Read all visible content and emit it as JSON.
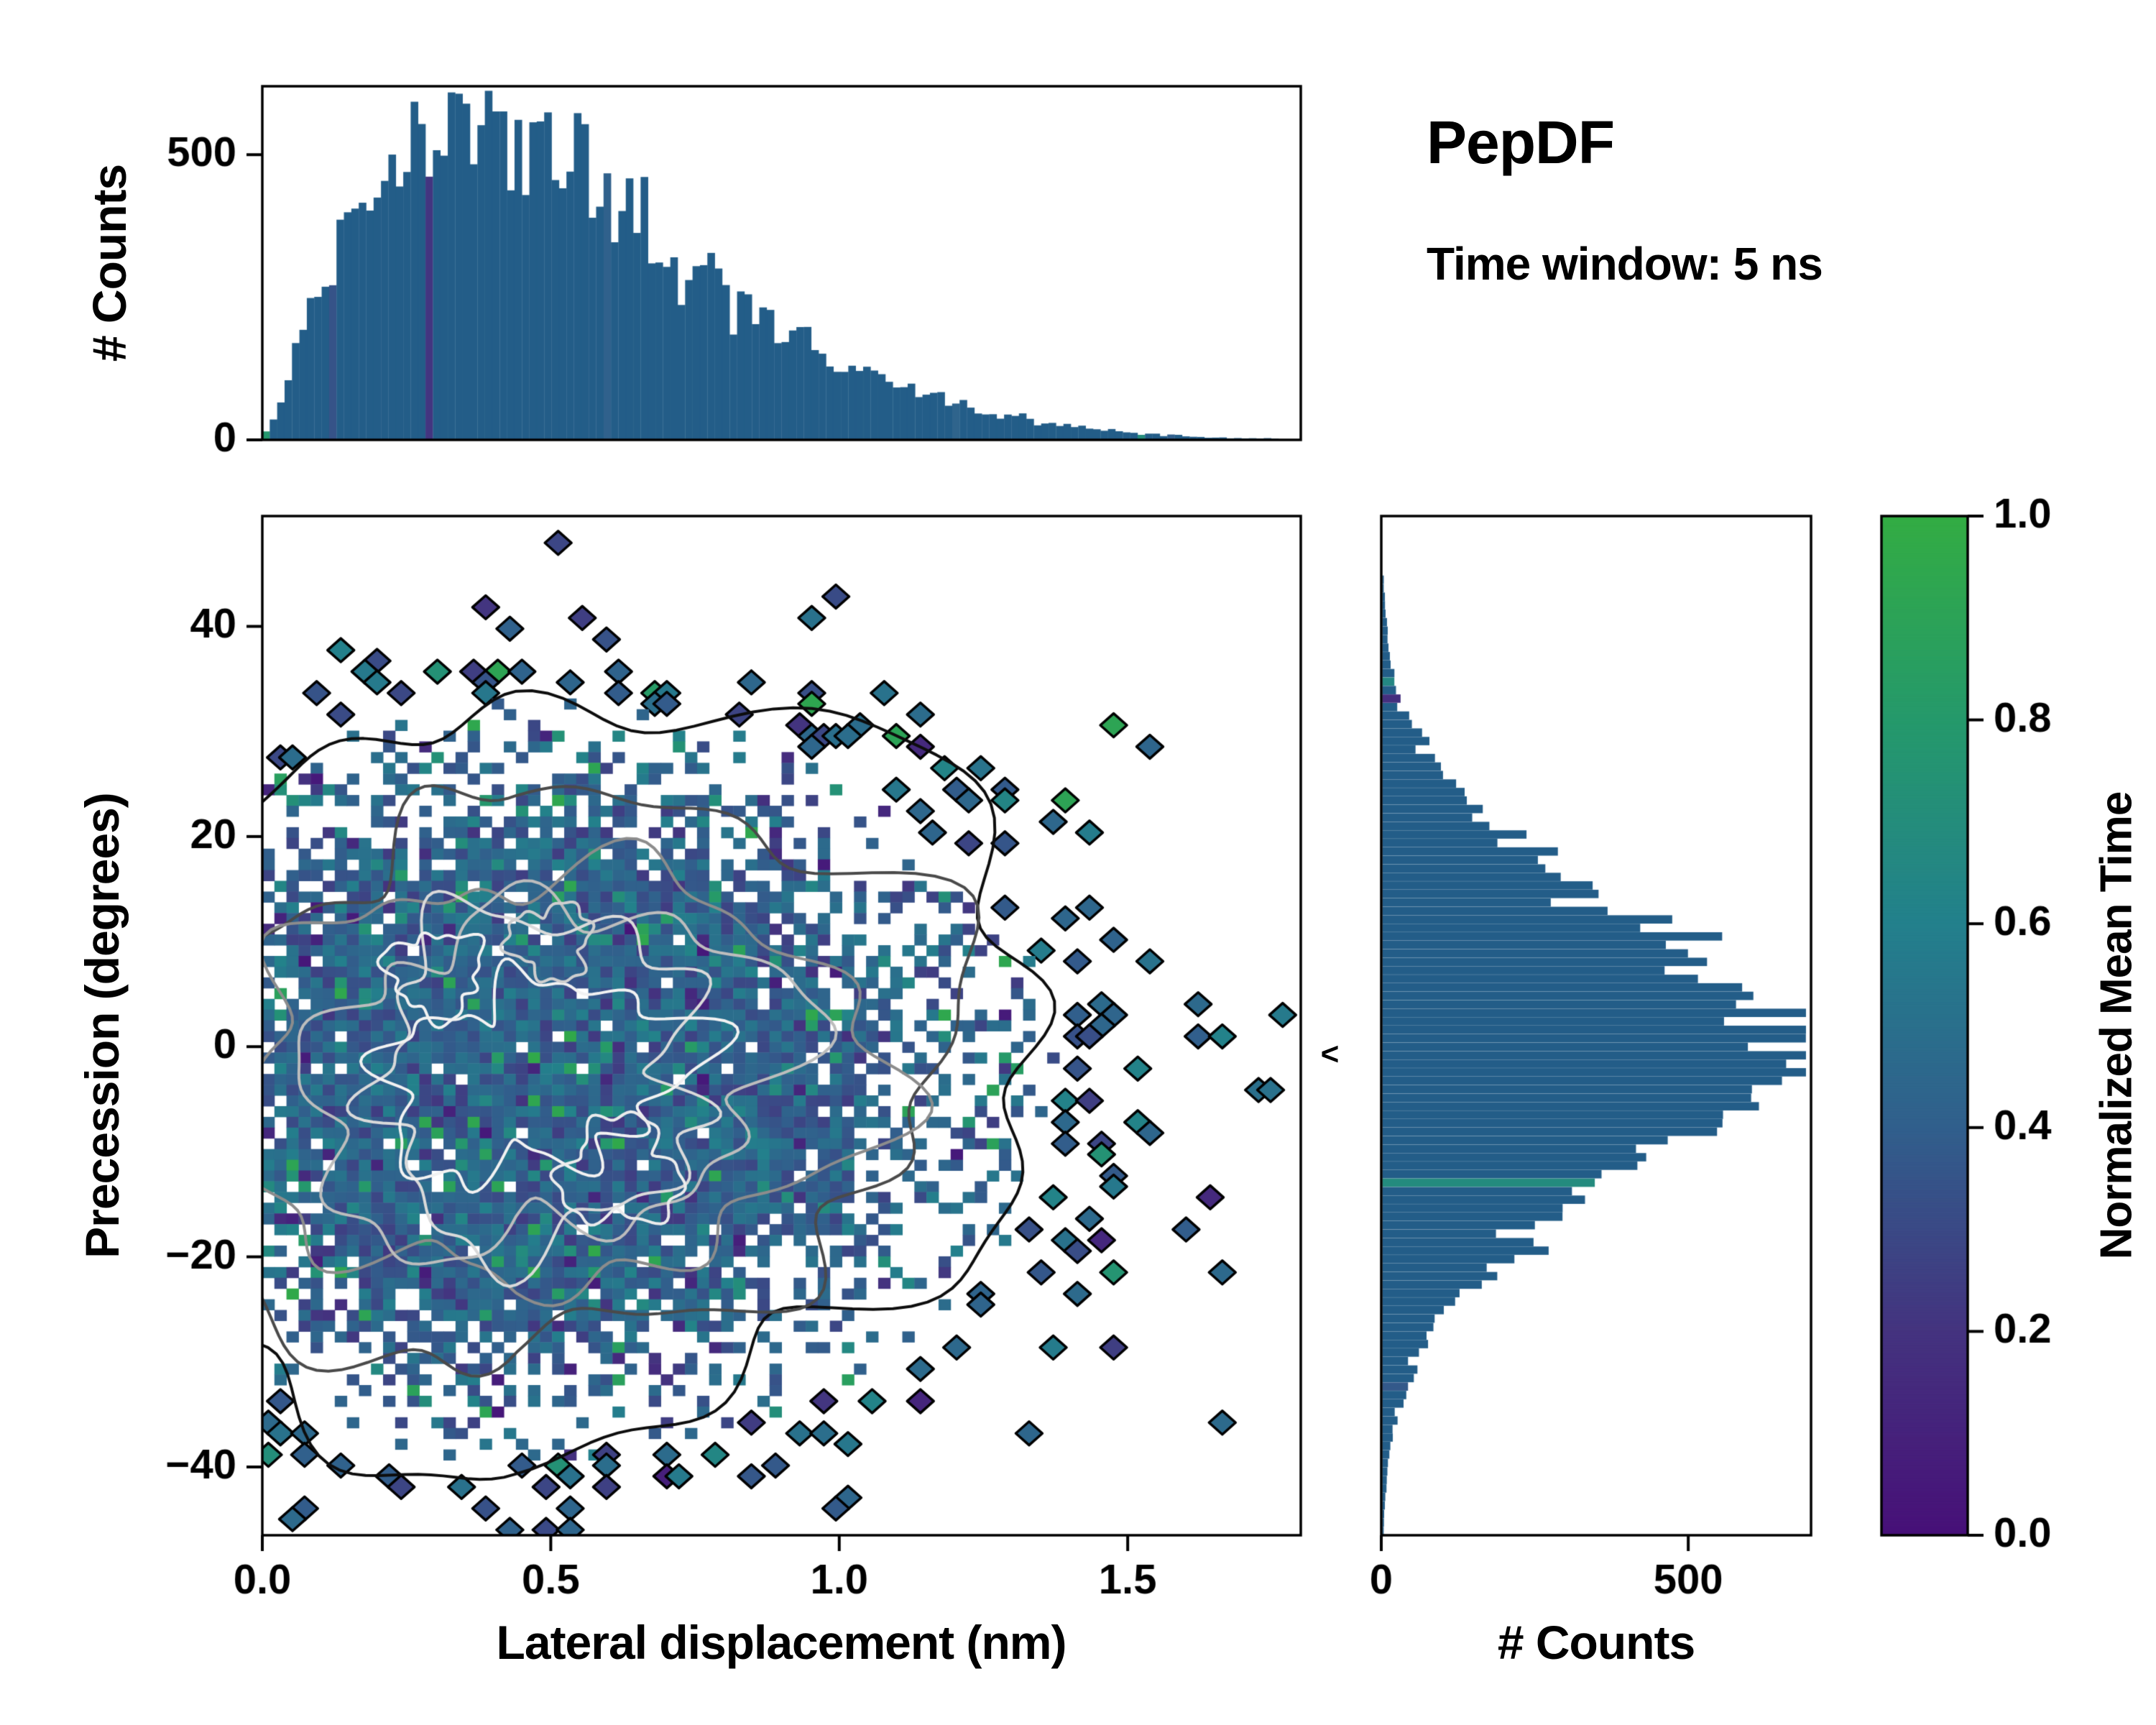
{
  "figure": {
    "title": "PepDF",
    "subtitle": "Time window: 5 ns"
  },
  "annotations": {
    "marker": "<"
  },
  "colors": {
    "background": "#ffffff",
    "bar": "#235d88",
    "spine": "#000000",
    "text": "#000000"
  },
  "colormap": {
    "name": "viridis-style",
    "stops": [
      [
        0.0,
        "#471078"
      ],
      [
        0.2,
        "#44337f"
      ],
      [
        0.4,
        "#315f8c"
      ],
      [
        0.6,
        "#23808c"
      ],
      [
        0.8,
        "#25996b"
      ],
      [
        1.0,
        "#33ac43"
      ]
    ]
  },
  "colorbar": {
    "label": "Normalized Mean Time",
    "tick_values": [
      0.0,
      0.2,
      0.4,
      0.6,
      0.8,
      1.0
    ],
    "tick_labels": [
      "0.0",
      "0.2",
      "0.4",
      "0.6",
      "0.8",
      "1.0"
    ]
  },
  "chart_data": [
    {
      "id": "top-histogram",
      "type": "bar",
      "role": "marginal-x",
      "ylabel": "# Counts",
      "xlim": [
        0,
        1.8
      ],
      "ylim": [
        0,
        620
      ],
      "bins": 140,
      "yticks": {
        "values": [
          0,
          500
        ],
        "labels": [
          "0",
          "500"
        ]
      },
      "envelope": [
        [
          0.0,
          2
        ],
        [
          0.03,
          60
        ],
        [
          0.06,
          150
        ],
        [
          0.1,
          260
        ],
        [
          0.14,
          350
        ],
        [
          0.18,
          415
        ],
        [
          0.22,
          460
        ],
        [
          0.26,
          500
        ],
        [
          0.3,
          525
        ],
        [
          0.34,
          545
        ],
        [
          0.38,
          552
        ],
        [
          0.42,
          548
        ],
        [
          0.46,
          530
        ],
        [
          0.5,
          505
        ],
        [
          0.55,
          468
        ],
        [
          0.6,
          425
        ],
        [
          0.65,
          382
        ],
        [
          0.7,
          338
        ],
        [
          0.75,
          298
        ],
        [
          0.8,
          258
        ],
        [
          0.85,
          222
        ],
        [
          0.9,
          190
        ],
        [
          0.95,
          162
        ],
        [
          1.0,
          138
        ],
        [
          1.05,
          115
        ],
        [
          1.1,
          96
        ],
        [
          1.15,
          80
        ],
        [
          1.2,
          64
        ],
        [
          1.25,
          51
        ],
        [
          1.3,
          40
        ],
        [
          1.35,
          31
        ],
        [
          1.4,
          24
        ],
        [
          1.45,
          18
        ],
        [
          1.5,
          13
        ],
        [
          1.55,
          9
        ],
        [
          1.6,
          6
        ],
        [
          1.65,
          4
        ],
        [
          1.7,
          3
        ],
        [
          1.75,
          2
        ],
        [
          1.8,
          1
        ]
      ]
    },
    {
      "id": "joint-heatmap",
      "type": "heatmap",
      "xlabel": "Lateral displacement (nm)",
      "ylabel": "Precession (degrees)",
      "value_label": "Normalized Mean Time",
      "xlim": [
        0,
        1.8
      ],
      "ylim": [
        -46.5,
        50.5
      ],
      "xticks": {
        "values": [
          0,
          0.5,
          1.0,
          1.5
        ],
        "labels": [
          "0.0",
          "0.5",
          "1.0",
          "1.5"
        ]
      },
      "yticks": {
        "values": [
          -40,
          -20,
          0,
          20,
          40
        ],
        "labels": [
          "−40",
          "−20",
          "0",
          "20",
          "40"
        ]
      },
      "grid": [
        86,
        95
      ],
      "seed": 987654321,
      "blob": {
        "center": [
          0.44,
          -3
        ],
        "sigma_left": 0.3,
        "sigma_right": 0.4,
        "sigma_y": 15.5,
        "fill_scale": 2.2,
        "max_fill": 0.96
      },
      "values": {
        "mean": 0.42,
        "sd": 0.1,
        "speckle_fraction": 0.12,
        "fringe_speckle_fraction": 0.28
      },
      "contours": {
        "levels": [
          {
            "r": 2.3,
            "color": "#0d0d0d",
            "amp": 0.18
          },
          {
            "r": 1.8,
            "color": "#4a4a4a",
            "amp": 0.22
          },
          {
            "r": 1.4,
            "color": "#8c8c8c",
            "amp": 0.26
          },
          {
            "r": 1.1,
            "color": "#bdbdbd",
            "amp": 0.3
          },
          {
            "r": 0.9,
            "color": "#dadada",
            "amp": 0.36
          },
          {
            "r": 0.65,
            "color": "#f2f2f2",
            "amp": 0.45
          }
        ],
        "extra": [
          {
            "center": [
              0.62,
              -12
            ],
            "rx": 0.1,
            "ry": 5.0,
            "color": "#ececec"
          },
          {
            "center": [
              0.3,
              7
            ],
            "rx": 0.08,
            "ry": 4.0,
            "color": "#f2f2f2"
          },
          {
            "center": [
              0.5,
              10
            ],
            "rx": 0.07,
            "ry": 3.5,
            "color": "#cfcfcf"
          }
        ]
      }
    },
    {
      "id": "right-histogram",
      "type": "bar",
      "role": "marginal-y",
      "xlabel": "# Counts",
      "xlim": [
        0,
        700
      ],
      "ylim": [
        -46.5,
        50.5
      ],
      "bins": 120,
      "xticks": {
        "values": [
          0,
          500
        ],
        "labels": [
          "0",
          "500"
        ]
      },
      "envelope": [
        [
          -46,
          2
        ],
        [
          -42,
          6
        ],
        [
          -38,
          14
        ],
        [
          -34,
          30
        ],
        [
          -30,
          60
        ],
        [
          -26,
          105
        ],
        [
          -22,
          165
        ],
        [
          -18,
          245
        ],
        [
          -14,
          340
        ],
        [
          -10,
          445
        ],
        [
          -7,
          520
        ],
        [
          -4,
          590
        ],
        [
          -2,
          635
        ],
        [
          0,
          655
        ],
        [
          2,
          640
        ],
        [
          4,
          610
        ],
        [
          6,
          565
        ],
        [
          8,
          515
        ],
        [
          10,
          460
        ],
        [
          13,
          380
        ],
        [
          16,
          300
        ],
        [
          19,
          228
        ],
        [
          22,
          165
        ],
        [
          25,
          115
        ],
        [
          28,
          75
        ],
        [
          31,
          46
        ],
        [
          34,
          26
        ],
        [
          37,
          14
        ],
        [
          40,
          7
        ],
        [
          43,
          3
        ],
        [
          46,
          1
        ],
        [
          50,
          0
        ]
      ]
    }
  ]
}
